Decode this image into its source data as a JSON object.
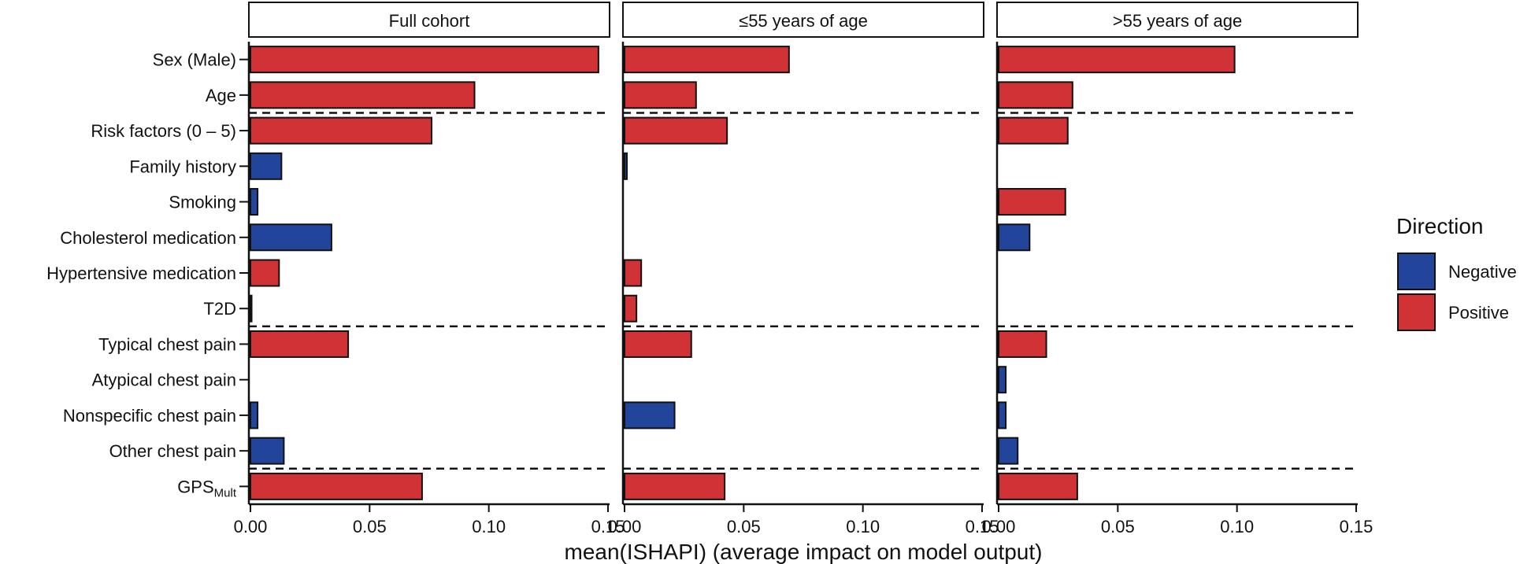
{
  "chart_data": {
    "type": "bar",
    "orientation": "horizontal",
    "xlabel": "mean(ISHAPI) (average impact on model output)",
    "xlim": [
      0,
      0.15
    ],
    "xticks": [
      0.0,
      0.05,
      0.1,
      0.15
    ],
    "xtick_labels": [
      "0.00",
      "0.05",
      "0.10",
      "0.15"
    ],
    "features": [
      {
        "label": "Sex (Male)",
        "sub": ""
      },
      {
        "label": "Age",
        "sub": ""
      },
      {
        "label": "Risk factors (0 – 5)",
        "sub": ""
      },
      {
        "label": "Family history",
        "sub": ""
      },
      {
        "label": "Smoking",
        "sub": ""
      },
      {
        "label": "Cholesterol medication",
        "sub": ""
      },
      {
        "label": "Hypertensive medication",
        "sub": ""
      },
      {
        "label": "T2D",
        "sub": ""
      },
      {
        "label": "Typical chest pain",
        "sub": ""
      },
      {
        "label": "Atypical chest pain",
        "sub": ""
      },
      {
        "label": "Nonspecific chest pain",
        "sub": ""
      },
      {
        "label": "Other chest pain",
        "sub": ""
      },
      {
        "label": "GPS",
        "sub": "Mult"
      }
    ],
    "group_separators_after": [
      1,
      7,
      11
    ],
    "panels": [
      {
        "title": "Full cohort",
        "values": [
          0.146,
          0.094,
          0.076,
          0.013,
          0.003,
          0.034,
          0.012,
          0.0005,
          0.041,
          0.0,
          0.003,
          0.014,
          0.072
        ],
        "directions": [
          "Positive",
          "Positive",
          "Positive",
          "Negative",
          "Negative",
          "Negative",
          "Positive",
          "Negative",
          "Positive",
          "Negative",
          "Negative",
          "Negative",
          "Positive"
        ]
      },
      {
        "title": "≤55 years of age",
        "values": [
          0.069,
          0.03,
          0.043,
          0.001,
          0.0,
          0.0,
          0.007,
          0.005,
          0.028,
          0.0,
          0.021,
          0.0,
          0.042
        ],
        "directions": [
          "Positive",
          "Positive",
          "Positive",
          "Negative",
          "Negative",
          "Negative",
          "Positive",
          "Positive",
          "Positive",
          "Negative",
          "Negative",
          "Negative",
          "Positive"
        ]
      },
      {
        "title": ">55 years of age",
        "values": [
          0.099,
          0.031,
          0.029,
          0.0,
          0.028,
          0.013,
          0.0,
          0.0,
          0.02,
          0.003,
          0.003,
          0.008,
          0.033
        ],
        "directions": [
          "Positive",
          "Positive",
          "Positive",
          "Negative",
          "Positive",
          "Negative",
          "Positive",
          "Negative",
          "Positive",
          "Negative",
          "Negative",
          "Negative",
          "Positive"
        ]
      }
    ],
    "legend": {
      "title": "Direction",
      "position": "right",
      "items": [
        {
          "label": "Negative",
          "color": "#22449a"
        },
        {
          "label": "Positive",
          "color": "#d13236"
        }
      ]
    }
  }
}
